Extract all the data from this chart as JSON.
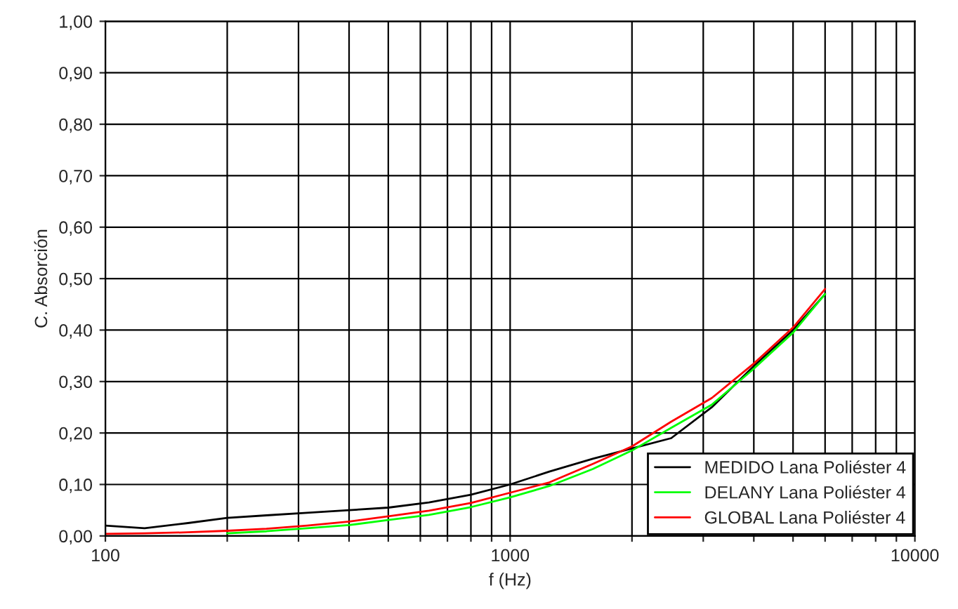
{
  "chart_data": {
    "type": "line",
    "xlabel": "f (Hz)",
    "ylabel": "C. Absorción",
    "log": "x",
    "grid": true,
    "legend": "bottom right",
    "x": [
      100,
      125,
      160,
      200,
      250,
      315,
      400,
      500,
      630,
      800,
      1000,
      1250,
      1600,
      2000,
      2500,
      3150,
      4000,
      5000,
      6000
    ],
    "series": [
      {
        "name": "MEDIDO Lana Poliéster 4",
        "color": "#000000",
        "values": [
          0.02,
          0.015,
          0.025,
          0.035,
          0.04,
          0.045,
          0.05,
          0.055,
          0.065,
          0.08,
          0.1,
          0.125,
          0.15,
          0.17,
          0.19,
          0.25,
          0.33,
          0.4,
          0.47
        ]
      },
      {
        "name": "DELANY Lana Poliéster 4",
        "color": "#00ff00",
        "values": [
          null,
          null,
          null,
          0.005,
          0.009,
          0.015,
          0.021,
          0.031,
          0.041,
          0.056,
          0.075,
          0.097,
          0.13,
          0.166,
          0.21,
          0.255,
          0.325,
          0.395,
          0.47
        ]
      },
      {
        "name": "GLOBAL Lana Poliéster 4",
        "color": "#ff0000",
        "values": [
          0.004,
          0.005,
          0.007,
          0.01,
          0.014,
          0.02,
          0.028,
          0.038,
          0.049,
          0.064,
          0.084,
          0.104,
          0.14,
          0.174,
          0.222,
          0.268,
          0.335,
          0.405,
          0.48
        ]
      }
    ],
    "xlim": [
      100,
      10000
    ],
    "ylim": [
      0,
      1
    ],
    "xticks": [
      100,
      {
        "value": 200,
        "label": null
      },
      {
        "value": 300,
        "label": null
      },
      {
        "value": 400,
        "label": null
      },
      {
        "value": 500,
        "label": null
      },
      {
        "value": 600,
        "label": null
      },
      {
        "value": 700,
        "label": null
      },
      {
        "value": 800,
        "label": null
      },
      {
        "value": 900,
        "label": null
      },
      1000,
      {
        "value": 2000,
        "label": null
      },
      {
        "value": 3000,
        "label": null
      },
      {
        "value": 4000,
        "label": null
      },
      {
        "value": 5000,
        "label": null
      },
      {
        "value": 6000,
        "label": null
      },
      {
        "value": 7000,
        "label": null
      },
      {
        "value": 8000,
        "label": null
      },
      {
        "value": 9000,
        "label": null
      },
      10000
    ],
    "yticks": [
      {
        "value": 0,
        "label": "0,00"
      },
      {
        "value": 0.1,
        "label": "0,10"
      },
      {
        "value": 0.2,
        "label": "0,20"
      },
      {
        "value": 0.3,
        "label": "0,30"
      },
      {
        "value": 0.4,
        "label": "0,40"
      },
      {
        "value": 0.5,
        "label": "0,50"
      },
      {
        "value": 0.6,
        "label": "0,60"
      },
      {
        "value": 0.7,
        "label": "0,70"
      },
      {
        "value": 0.8,
        "label": "0,80"
      },
      {
        "value": 0.9,
        "label": "0,90"
      },
      {
        "value": 1,
        "label": "1,00"
      }
    ]
  }
}
